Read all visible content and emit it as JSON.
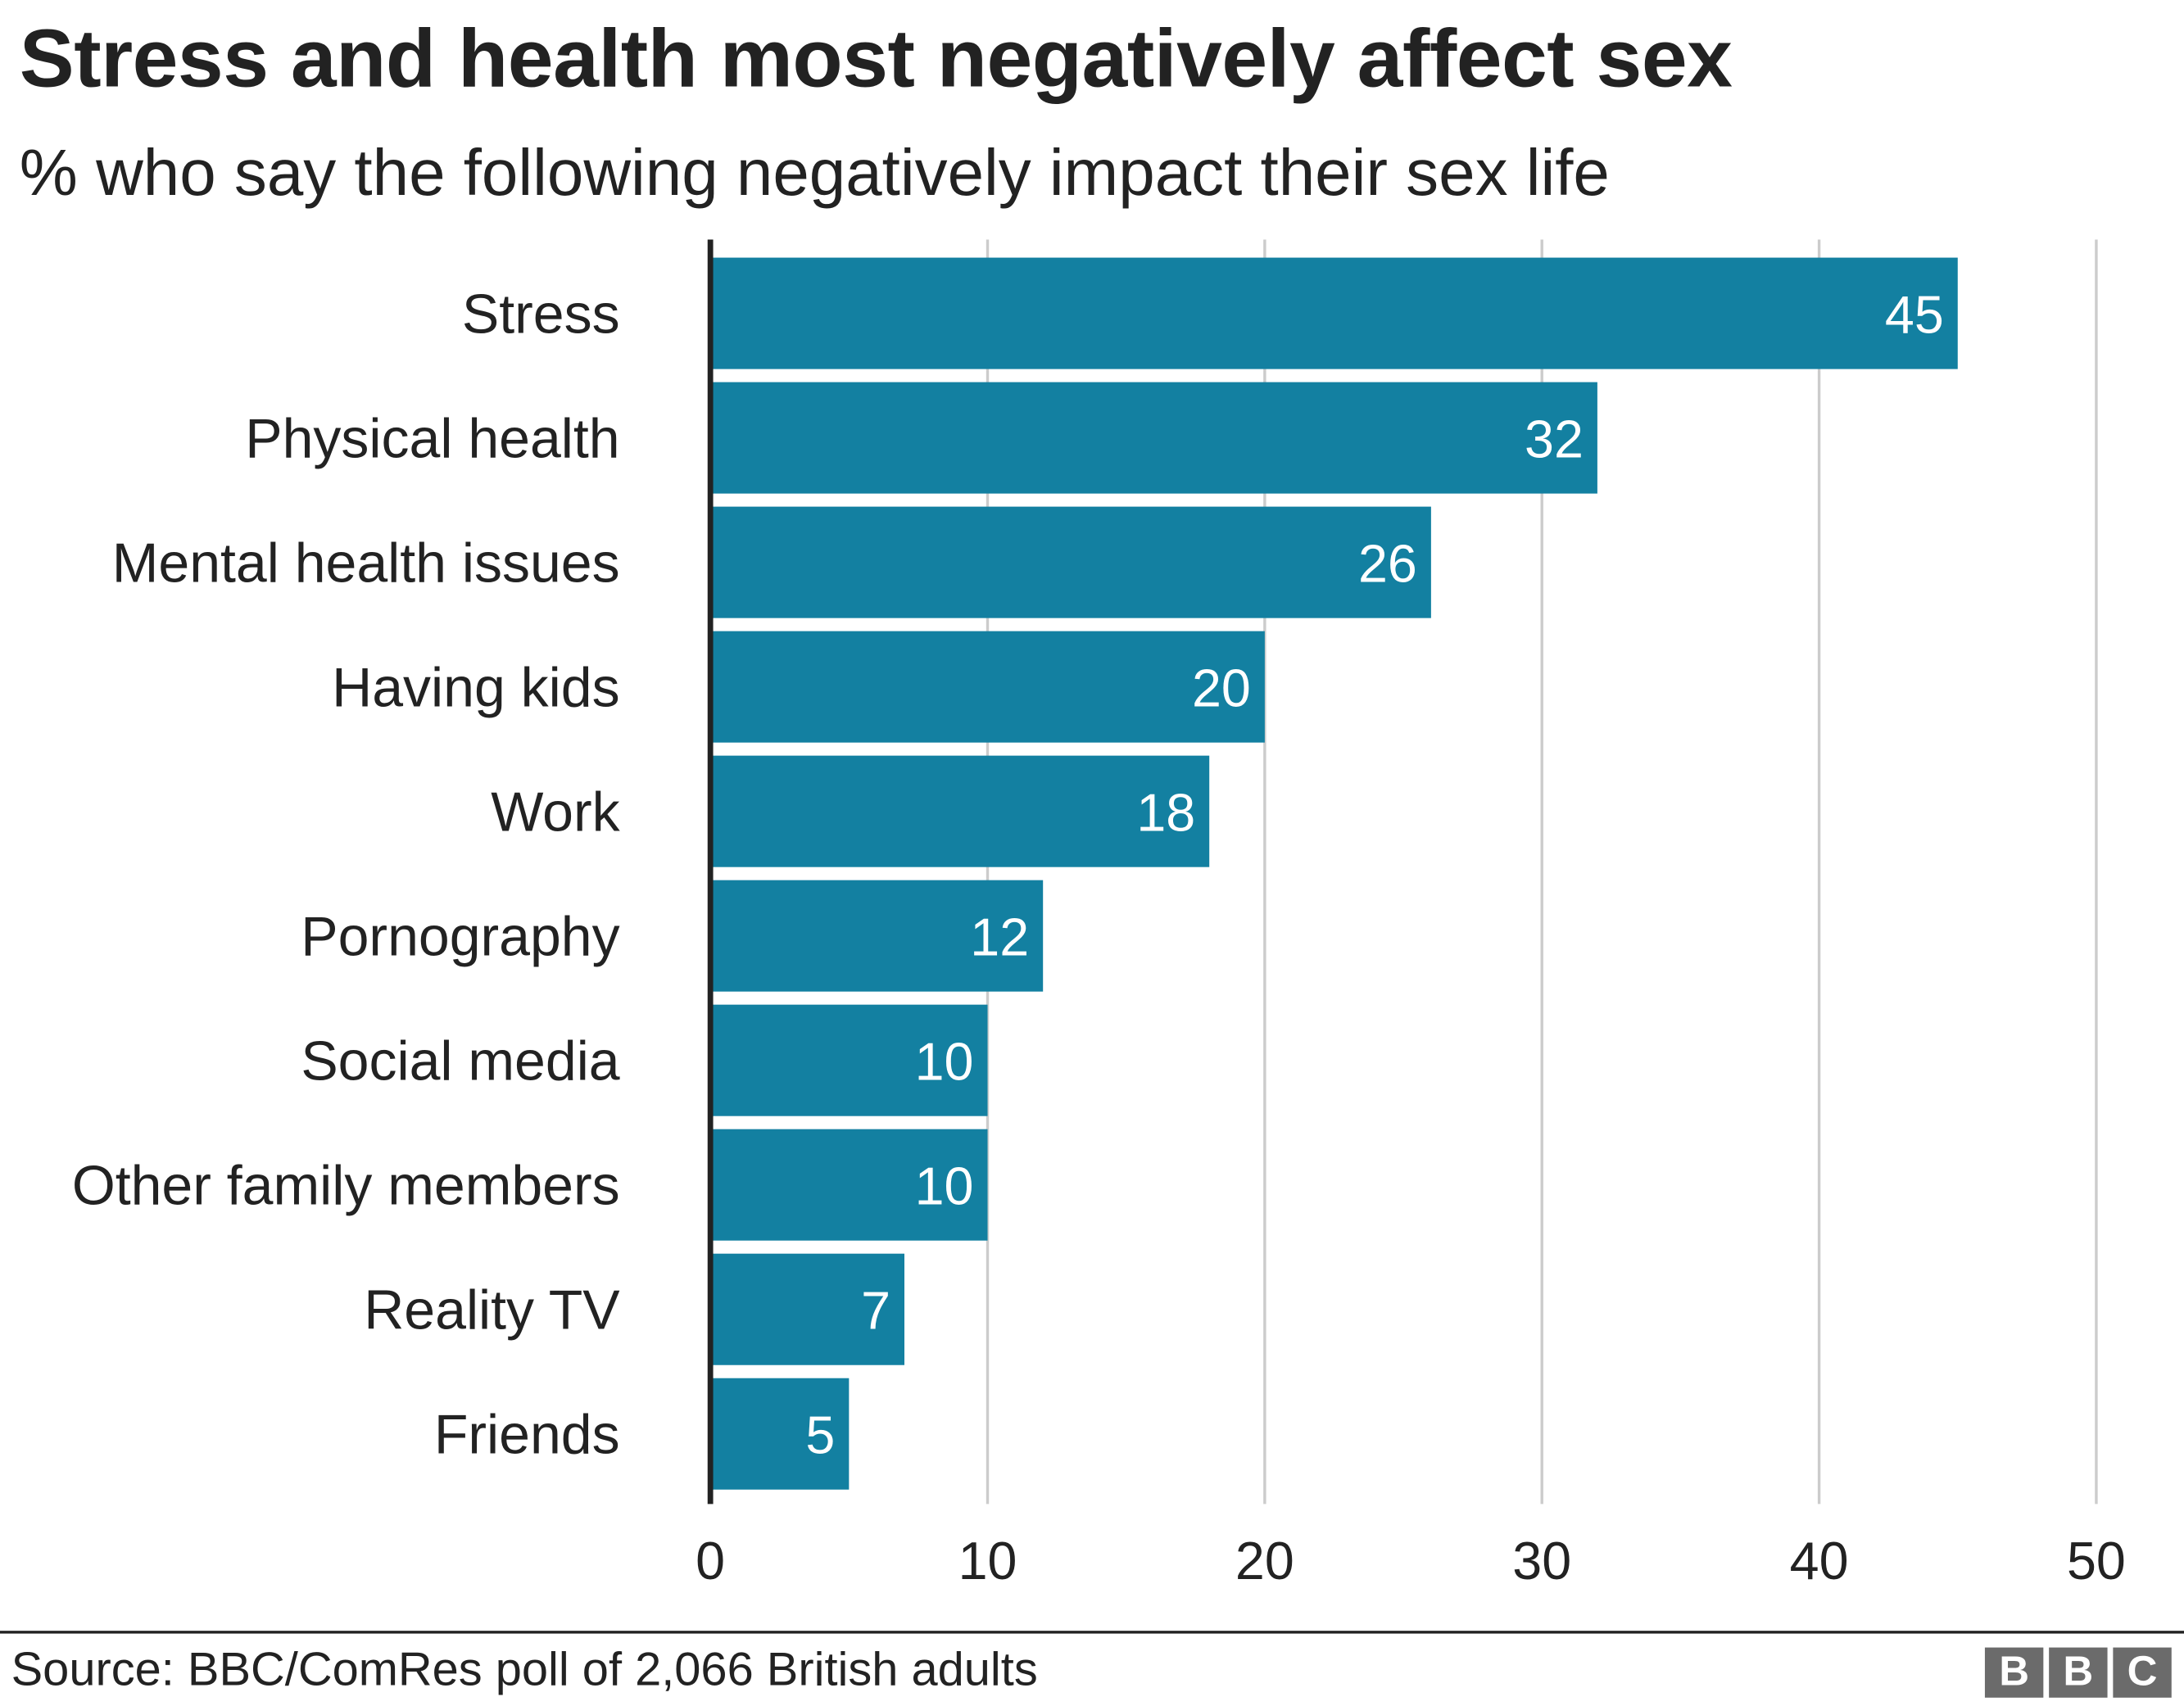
{
  "title": "Stress and health most negatively affect sex",
  "subtitle": "% who say the following negatively impact their sex life",
  "source": "Source: BBC/ComRes poll of 2,066 British adults",
  "logo": "BBC",
  "chart_data": {
    "type": "bar",
    "orientation": "horizontal",
    "categories": [
      "Stress",
      "Physical health",
      "Mental health issues",
      "Having kids",
      "Work",
      "Pornography",
      "Social media",
      "Other family members",
      "Reality TV",
      "Friends"
    ],
    "values": [
      45,
      32,
      26,
      20,
      18,
      12,
      10,
      10,
      7,
      5
    ],
    "xlim": [
      0,
      50
    ],
    "xticks": [
      0,
      10,
      20,
      30,
      40,
      50
    ],
    "grid": true,
    "data_labels": true,
    "bar_color": "#1380A1"
  }
}
